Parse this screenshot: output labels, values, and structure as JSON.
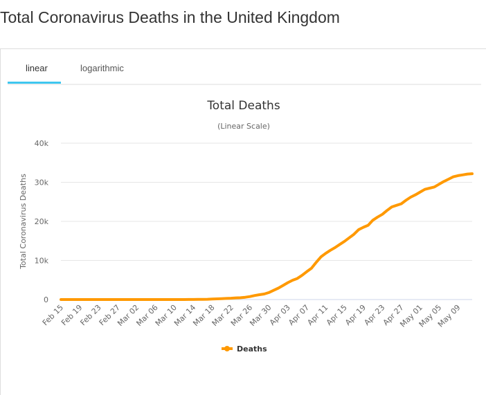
{
  "page_title": "Total Coronavirus Deaths in the United Kingdom",
  "tabs": [
    {
      "label": "linear",
      "active": true
    },
    {
      "label": "logarithmic",
      "active": false
    }
  ],
  "colors": {
    "line": "#ff9900",
    "tab_active": "#3ec6ef"
  },
  "chart_data": {
    "type": "line",
    "title": "Total Deaths",
    "subtitle": "(Linear Scale)",
    "ylabel": "Total Coronavirus Deaths",
    "xlabel": "",
    "ylim": [
      0,
      40000
    ],
    "y_ticks": [
      {
        "v": 0,
        "label": "0"
      },
      {
        "v": 10000,
        "label": "10k"
      },
      {
        "v": 20000,
        "label": "20k"
      },
      {
        "v": 30000,
        "label": "30k"
      },
      {
        "v": 40000,
        "label": "40k"
      }
    ],
    "x_tick_labels": [
      "Feb 15",
      "Feb 19",
      "Feb 23",
      "Feb 27",
      "Mar 02",
      "Mar 06",
      "Mar 10",
      "Mar 14",
      "Mar 18",
      "Mar 22",
      "Mar 26",
      "Mar 30",
      "Apr 03",
      "Apr 07",
      "Apr 11",
      "Apr 15",
      "Apr 19",
      "Apr 23",
      "Apr 27",
      "May 01",
      "May 05",
      "May 09"
    ],
    "x_start": "Feb 15",
    "x_end": "May 12",
    "grid": true,
    "legend": "bottom",
    "series": [
      {
        "name": "Deaths",
        "values": [
          0,
          0,
          0,
          0,
          0,
          0,
          0,
          0,
          0,
          0,
          0,
          0,
          0,
          0,
          0,
          0,
          0,
          0,
          0,
          1,
          2,
          2,
          3,
          4,
          6,
          8,
          8,
          10,
          21,
          56,
          56,
          72,
          138,
          178,
          234,
          282,
          336,
          423,
          466,
          580,
          761,
          1021,
          1231,
          1411,
          1793,
          2357,
          2926,
          3611,
          4320,
          4943,
          5385,
          6171,
          7111,
          7993,
          9500,
          10900,
          11800,
          12600,
          13300,
          14100,
          14900,
          15800,
          16700,
          17900,
          18500,
          19000,
          20300,
          21100,
          21800,
          22800,
          23700,
          24100,
          24500,
          25400,
          26200,
          26800,
          27500,
          28200,
          28500,
          28800,
          29500,
          30200,
          30800,
          31400,
          31700,
          31900,
          32100,
          32200
        ]
      }
    ]
  }
}
